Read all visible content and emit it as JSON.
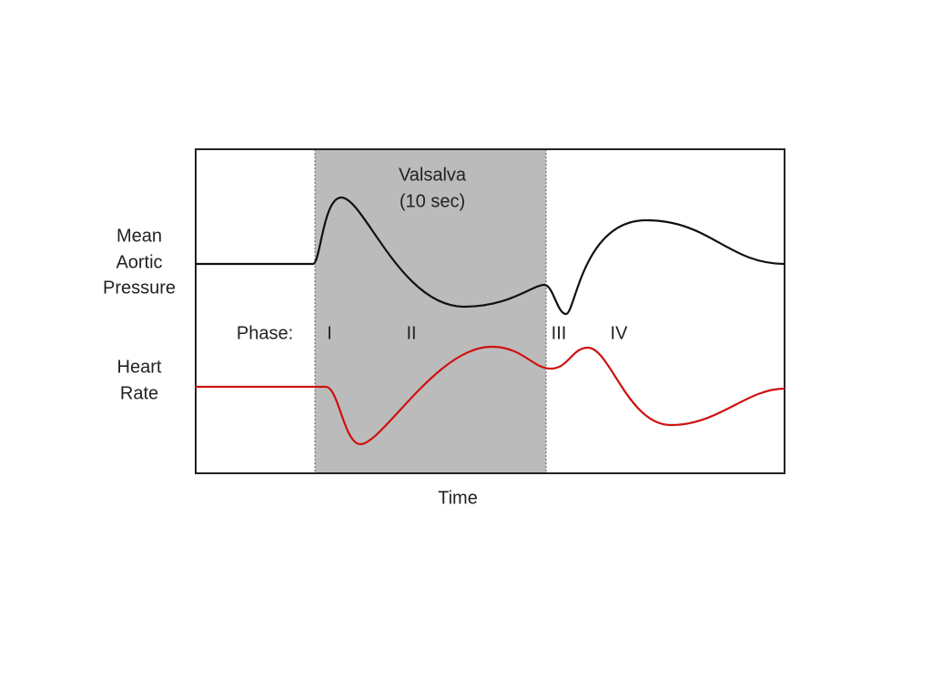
{
  "diagram": {
    "shaded_region": {
      "label_lines": [
        "Valsalva",
        "(10 sec)"
      ]
    },
    "traces": [
      {
        "label_lines": [
          "Mean",
          "Aortic",
          "Pressure"
        ]
      },
      {
        "label_lines": [
          "Heart",
          "Rate"
        ]
      }
    ],
    "phase_label": "Phase:",
    "phases": [
      "I",
      "II",
      "III",
      "IV"
    ],
    "x_axis_label": "Time"
  }
}
